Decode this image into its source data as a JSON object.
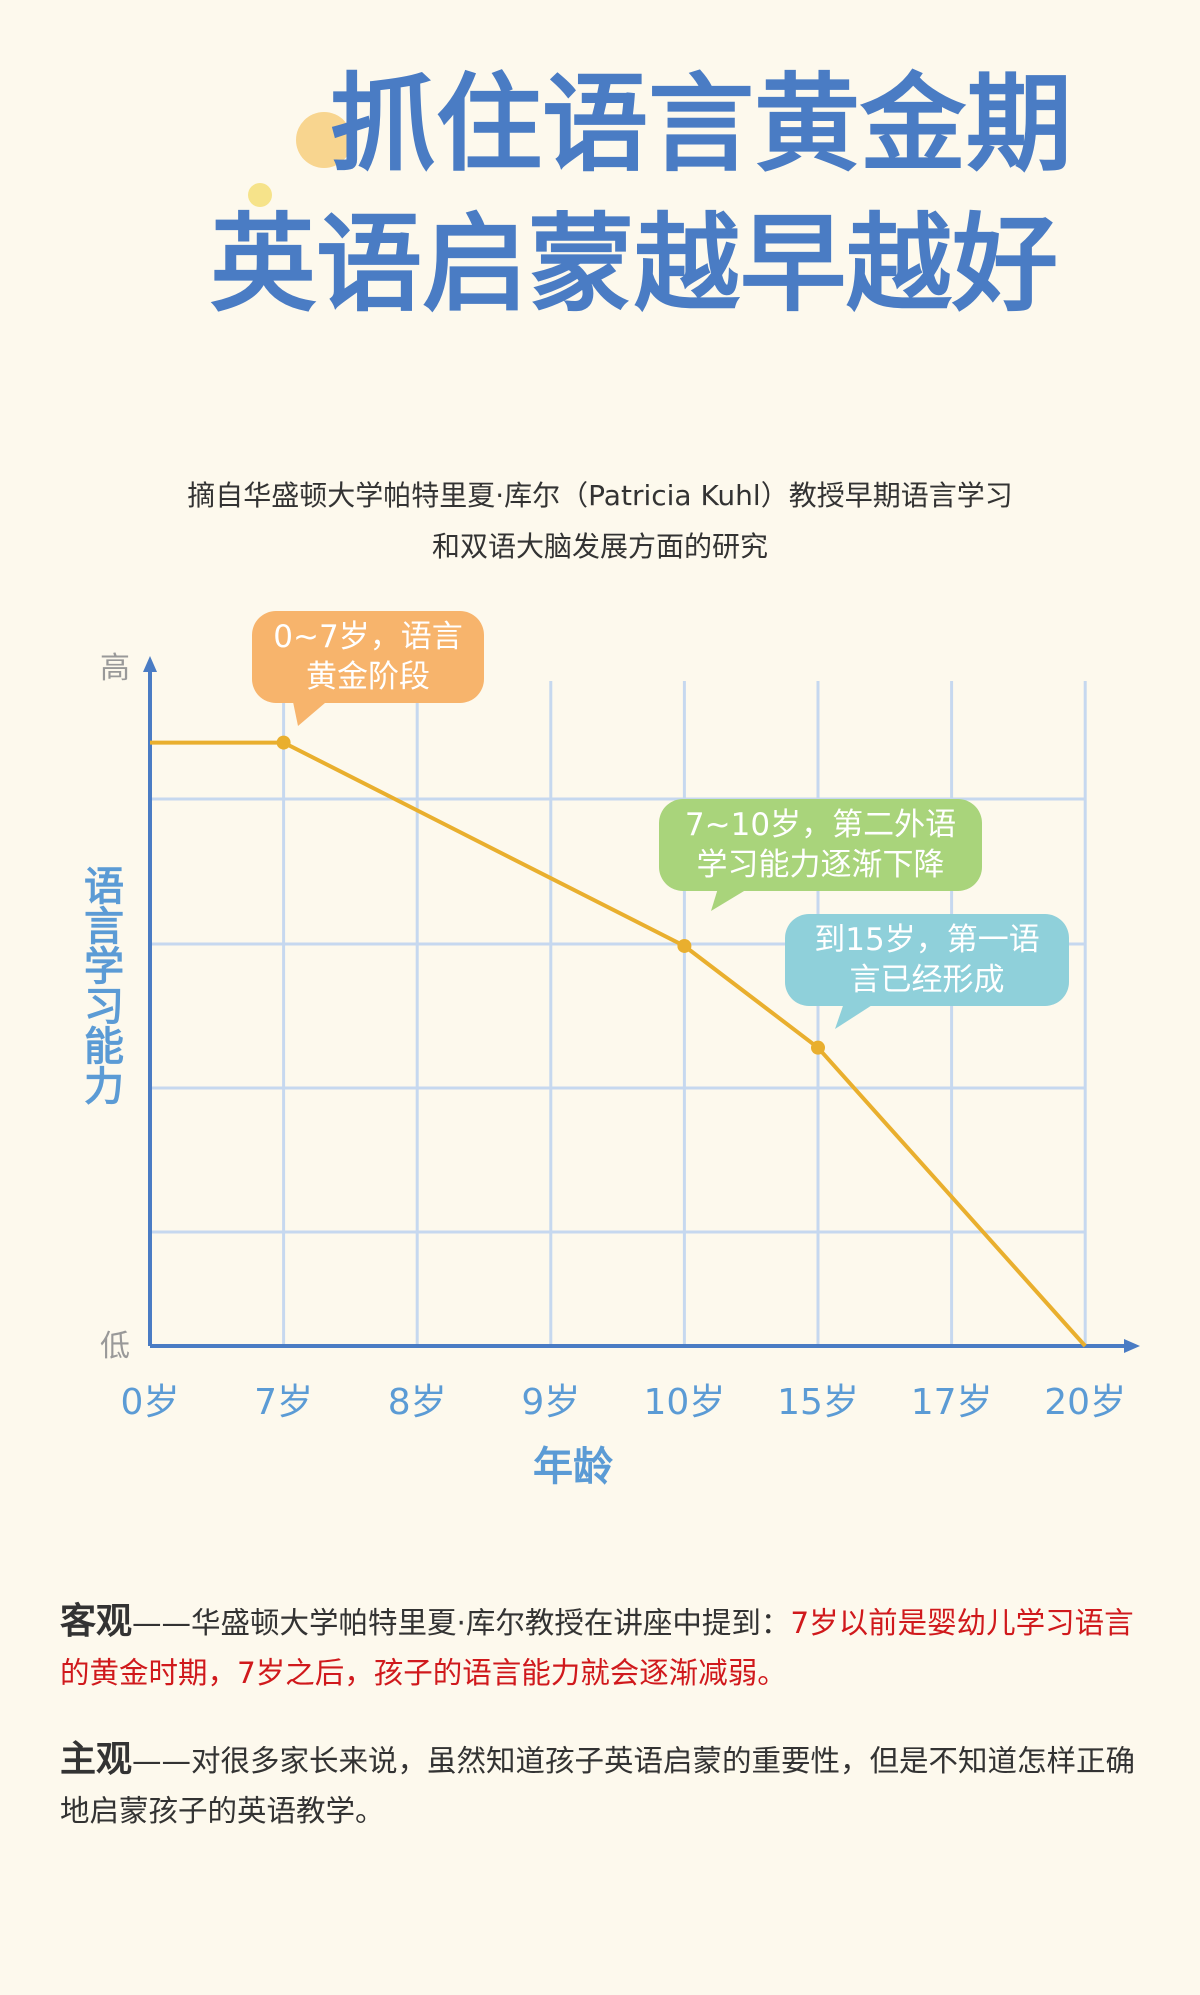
{
  "header": {
    "title_lines": [
      "抓住语言黄金期",
      "英语启蒙越早越好"
    ]
  },
  "source_lines": [
    "摘自华盛顿大学帕特里夏·库尔（Patricia Kuhl）教授早期语言学习",
    "和双语大脑发展方面的研究"
  ],
  "chart_data": {
    "type": "line",
    "categories": [
      "0岁",
      "7岁",
      "8岁",
      "9岁",
      "10岁",
      "15岁",
      "17岁",
      "20岁"
    ],
    "values": [
      89,
      89,
      79,
      69,
      59,
      44,
      22,
      0
    ],
    "color": "#e9af2e",
    "ylim": [
      0,
      100
    ],
    "yticks": [
      {
        "value": 0,
        "label": "低"
      },
      {
        "value": 100,
        "label": "高"
      }
    ],
    "x_label": "年龄",
    "y_label": "语言学习能力",
    "grid": true,
    "annotations": [
      {
        "text": "0~7岁，语言黄金阶段",
        "category": "7岁",
        "color": "#f7b46c"
      },
      {
        "text": "7~10岁，第二外语学习能力逐渐下降",
        "category": "10岁",
        "color": "#a9d47b"
      },
      {
        "text": "到15岁，第一语言已经形成",
        "category": "15岁",
        "color": "#8fd0da"
      }
    ]
  },
  "paragraphs": [
    {
      "lead": "客观",
      "text": "——华盛顿大学帕特里夏·库尔教授在讲座中提到：",
      "highlight": "7岁以前是婴幼儿学习语言的黄金时期，7岁之后，孩子的语言能力就会逐渐减弱。"
    },
    {
      "lead": "主观",
      "text": "——对很多家长来说，虽然知道孩子英语启蒙的重要性，但是不知道怎样正确地启蒙孩子的英语教学。"
    }
  ]
}
